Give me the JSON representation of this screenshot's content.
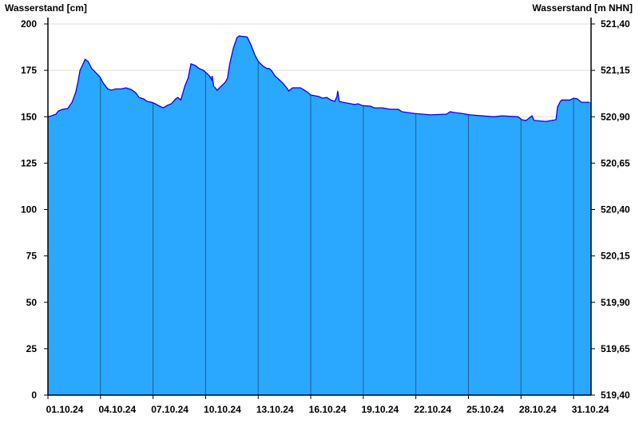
{
  "chart_data": {
    "type": "area",
    "ylabel_left": "Wasserstand [cm]",
    "ylabel_right": "Wasserstand [m NHN]",
    "ylim": [
      0,
      200
    ],
    "yticks_left": [
      "0",
      "25",
      "50",
      "75",
      "100",
      "125",
      "150",
      "175",
      "200"
    ],
    "yticks_right": [
      "519,40",
      "519,65",
      "519,90",
      "520,15",
      "520,40",
      "520,65",
      "520,90",
      "521,15",
      "521,40"
    ],
    "xlim": [
      "2024-10-01T00:00",
      "2024-11-01T00:00"
    ],
    "xticks": [
      "01.10.24",
      "04.10.24",
      "07.10.24",
      "10.10.24",
      "13.10.24",
      "16.10.24",
      "19.10.24",
      "22.10.24",
      "25.10.24",
      "28.10.24",
      "31.10.24"
    ],
    "grid": "horizontal",
    "colors": {
      "fill": "#2aa8ff",
      "line": "#0000ff",
      "day_lines": "#1f5d86",
      "grid": "#dddddd"
    },
    "points": [
      [
        "2024-10-01T00:00",
        150
      ],
      [
        "2024-10-01T05:00",
        150.5
      ],
      [
        "2024-10-01T11:00",
        151.4
      ],
      [
        "2024-10-01T14:00",
        153
      ],
      [
        "2024-10-01T20:00",
        154
      ],
      [
        "2024-10-02T03:00",
        154.4
      ],
      [
        "2024-10-02T09:00",
        157.8
      ],
      [
        "2024-10-02T14:00",
        163
      ],
      [
        "2024-10-02T17:00",
        168.6
      ],
      [
        "2024-10-02T20:00",
        175
      ],
      [
        "2024-10-02T23:00",
        177.6
      ],
      [
        "2024-10-03T03:00",
        181
      ],
      [
        "2024-10-03T07:00",
        179.8
      ],
      [
        "2024-10-03T12:00",
        176
      ],
      [
        "2024-10-03T17:00",
        174
      ],
      [
        "2024-10-03T23:00",
        171.6
      ],
      [
        "2024-10-04T04:00",
        168
      ],
      [
        "2024-10-04T10:00",
        165
      ],
      [
        "2024-10-04T15:00",
        164.3
      ],
      [
        "2024-10-04T21:00",
        165
      ],
      [
        "2024-10-05T04:00",
        165
      ],
      [
        "2024-10-05T11:00",
        165.6
      ],
      [
        "2024-10-05T18:00",
        164.7
      ],
      [
        "2024-10-06T00:00",
        163
      ],
      [
        "2024-10-06T05:00",
        160.4
      ],
      [
        "2024-10-06T11:00",
        159.6
      ],
      [
        "2024-10-06T16:00",
        158.3
      ],
      [
        "2024-10-06T22:00",
        157.8
      ],
      [
        "2024-10-07T03:00",
        157
      ],
      [
        "2024-10-07T09:00",
        155.7
      ],
      [
        "2024-10-07T14:00",
        154.8
      ],
      [
        "2024-10-07T20:00",
        156.2
      ],
      [
        "2024-10-08T01:00",
        157
      ],
      [
        "2024-10-08T07:00",
        159.6
      ],
      [
        "2024-10-08T10:00",
        160.4
      ],
      [
        "2024-10-08T14:00",
        159
      ],
      [
        "2024-10-08T20:00",
        167
      ],
      [
        "2024-10-09T00:00",
        170.8
      ],
      [
        "2024-10-09T04:00",
        178.5
      ],
      [
        "2024-10-09T10:00",
        177.6
      ],
      [
        "2024-10-09T15:00",
        176
      ],
      [
        "2024-10-09T21:00",
        175
      ],
      [
        "2024-10-10T02:00",
        173.3
      ],
      [
        "2024-10-10T06:00",
        171.6
      ],
      [
        "2024-10-10T08:00",
        170
      ],
      [
        "2024-10-10T09:00",
        172
      ],
      [
        "2024-10-10T11:00",
        166.5
      ],
      [
        "2024-10-10T16:00",
        164.3
      ],
      [
        "2024-10-10T20:00",
        166
      ],
      [
        "2024-10-11T03:00",
        168.6
      ],
      [
        "2024-10-11T06:00",
        170.8
      ],
      [
        "2024-10-11T09:00",
        178.5
      ],
      [
        "2024-10-11T14:00",
        187
      ],
      [
        "2024-10-11T19:00",
        192.7
      ],
      [
        "2024-10-11T22:00",
        193.5
      ],
      [
        "2024-10-12T09:00",
        193
      ],
      [
        "2024-10-12T14:00",
        188.8
      ],
      [
        "2024-10-12T20:00",
        182.8
      ],
      [
        "2024-10-13T01:00",
        179.4
      ],
      [
        "2024-10-13T07:00",
        177.2
      ],
      [
        "2024-10-13T12:00",
        176
      ],
      [
        "2024-10-13T15:00",
        176
      ],
      [
        "2024-10-13T18:00",
        175
      ],
      [
        "2024-10-13T23:00",
        172
      ],
      [
        "2024-10-14T04:00",
        170.3
      ],
      [
        "2024-10-14T10:00",
        168
      ],
      [
        "2024-10-14T15:00",
        165.6
      ],
      [
        "2024-10-14T18:00",
        163.9
      ],
      [
        "2024-10-14T23:00",
        165.6
      ],
      [
        "2024-10-15T10:00",
        165.6
      ],
      [
        "2024-10-15T19:00",
        163.4
      ],
      [
        "2024-10-16T00:00",
        161.7
      ],
      [
        "2024-10-16T11:00",
        160.9
      ],
      [
        "2024-10-16T16:00",
        160
      ],
      [
        "2024-10-16T22:00",
        160.4
      ],
      [
        "2024-10-17T03:00",
        159.1
      ],
      [
        "2024-10-17T09:00",
        158.3
      ],
      [
        "2024-10-17T12:00",
        161
      ],
      [
        "2024-10-17T13:00",
        163.9
      ],
      [
        "2024-10-17T15:00",
        158.3
      ],
      [
        "2024-10-17T20:00",
        157.8
      ],
      [
        "2024-10-18T07:00",
        157
      ],
      [
        "2024-10-18T12:00",
        156.6
      ],
      [
        "2024-10-18T17:00",
        157
      ],
      [
        "2024-10-18T23:00",
        156
      ],
      [
        "2024-10-19T10:00",
        155.7
      ],
      [
        "2024-10-19T15:00",
        154.8
      ],
      [
        "2024-10-20T02:00",
        154.8
      ],
      [
        "2024-10-20T13:00",
        154
      ],
      [
        "2024-10-21T00:00",
        154
      ],
      [
        "2024-10-21T05:00",
        152.7
      ],
      [
        "2024-10-21T22:00",
        151.8
      ],
      [
        "2024-10-22T20:00",
        151
      ],
      [
        "2024-10-23T18:00",
        151.4
      ],
      [
        "2024-10-23T23:00",
        152.7
      ],
      [
        "2024-10-24T04:00",
        152.3
      ],
      [
        "2024-10-24T15:00",
        151.8
      ],
      [
        "2024-10-25T02:00",
        151
      ],
      [
        "2024-10-26T11:00",
        150
      ],
      [
        "2024-10-26T22:00",
        150.5
      ],
      [
        "2024-10-27T20:00",
        150
      ],
      [
        "2024-10-28T01:00",
        148.4
      ],
      [
        "2024-10-28T07:00",
        148
      ],
      [
        "2024-10-28T15:00",
        150.5
      ],
      [
        "2024-10-28T18:00",
        148
      ],
      [
        "2024-10-29T10:00",
        147.5
      ],
      [
        "2024-10-30T00:00",
        148.4
      ],
      [
        "2024-10-30T02:00",
        155.3
      ],
      [
        "2024-10-30T06:00",
        158.3
      ],
      [
        "2024-10-30T08:00",
        159
      ],
      [
        "2024-10-30T19:00",
        159
      ],
      [
        "2024-10-31T00:00",
        160
      ],
      [
        "2024-10-31T05:00",
        159.6
      ],
      [
        "2024-10-31T11:00",
        157.8
      ],
      [
        "2024-10-31T22:00",
        157.8
      ]
    ]
  }
}
